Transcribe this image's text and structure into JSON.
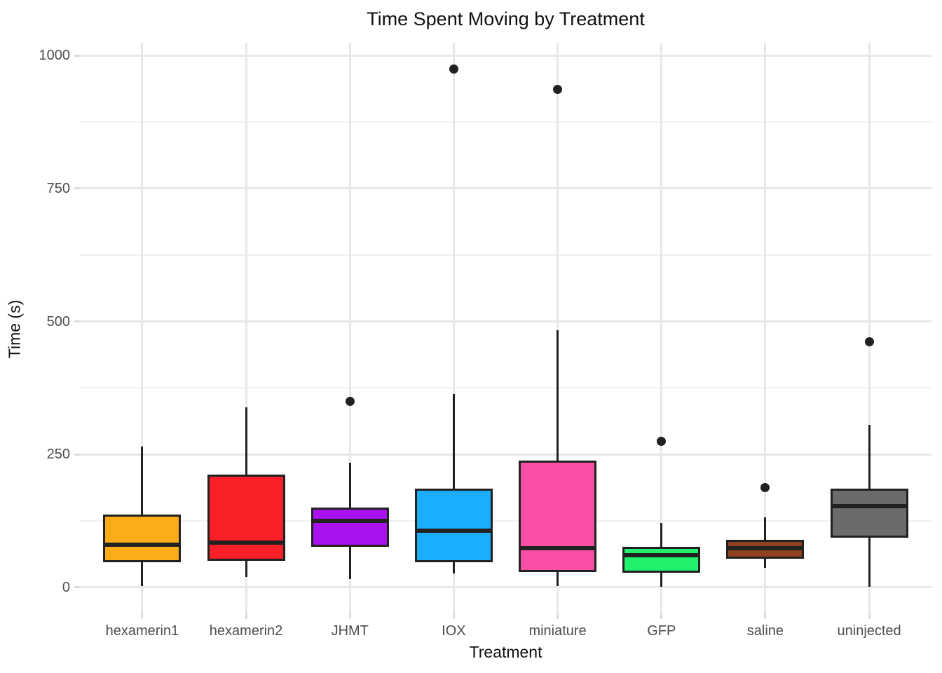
{
  "title": "Time Spent Moving by Treatment",
  "x_axis": {
    "label": "Treatment"
  },
  "y_axis": {
    "label": "Time (s)"
  },
  "colors": {
    "background": "#ffffff",
    "major_grid": "#e8e8e8",
    "minor_grid": "#f0f0f0",
    "tick_text": "#4d4d4d",
    "title_text": "#111111",
    "box_stroke": "#212121"
  },
  "chart_data": {
    "type": "boxplot",
    "title": "Time Spent Moving by Treatment",
    "xlabel": "Treatment",
    "ylabel": "Time (s)",
    "ylim": [
      -49,
      1024
    ],
    "yticks": [
      0,
      250,
      500,
      750,
      1000
    ],
    "minor_gridlines": [
      125,
      375,
      625,
      875
    ],
    "grid": "major+minor horizontal, vertical line per category",
    "legend": "none",
    "categories": [
      "hexamerin1",
      "hexamerin2",
      "JHMT",
      "IOX",
      "miniature",
      "GFP",
      "saline",
      "uninjected"
    ],
    "series": [
      {
        "name": "hexamerin1",
        "color": "#fbac18",
        "whisker_low": 3,
        "q1": 47,
        "median": 80,
        "q3": 137,
        "whisker_high": 265,
        "outliers": []
      },
      {
        "name": "hexamerin2",
        "color": "#fb1f28",
        "whisker_low": 20,
        "q1": 50,
        "median": 84,
        "q3": 212,
        "whisker_high": 339,
        "outliers": []
      },
      {
        "name": "JHMT",
        "color": "#a911f0",
        "whisker_low": 16,
        "q1": 76,
        "median": 125,
        "q3": 150,
        "whisker_high": 235,
        "outliers": [
          350
        ]
      },
      {
        "name": "IOX",
        "color": "#1baefe",
        "whisker_low": 26,
        "q1": 47,
        "median": 107,
        "q3": 185,
        "whisker_high": 364,
        "outliers": [
          975
        ]
      },
      {
        "name": "miniature",
        "color": "#fb4fa5",
        "whisker_low": 2,
        "q1": 29,
        "median": 73,
        "q3": 239,
        "whisker_high": 484,
        "outliers": [
          937
        ]
      },
      {
        "name": "GFP",
        "color": "#22f16e",
        "whisker_low": 1,
        "q1": 27,
        "median": 61,
        "q3": 76,
        "whisker_high": 121,
        "outliers": [
          274
        ]
      },
      {
        "name": "saline",
        "color": "#8f4120",
        "whisker_low": 37,
        "q1": 54,
        "median": 74,
        "q3": 90,
        "whisker_high": 132,
        "outliers": [
          188
        ]
      },
      {
        "name": "uninjected",
        "color": "#6b6b6b",
        "whisker_low": 1,
        "q1": 93,
        "median": 153,
        "q3": 185,
        "whisker_high": 306,
        "outliers": [
          462
        ]
      }
    ]
  }
}
